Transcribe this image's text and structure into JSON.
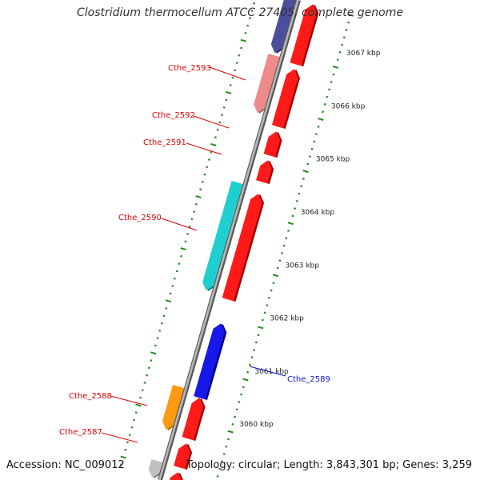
{
  "title": "Clostridium thermocellum ATCC 27405, complete genome",
  "accession": "Accession: NC_009012",
  "topology": "Topology: circular; Length: 3,843,301 bp; Genes: 3,259",
  "colors": {
    "backbone": "#8c8c8c",
    "tick": "#228b22",
    "label_red": "#dd0000",
    "label_blue": "#1010cc",
    "red": "#ff1a1a",
    "red_dark": "#a30000",
    "pink": "#ee8a8a",
    "pink_dark": "#a85a5a",
    "cyan": "#1fcfcf",
    "cyan_dark": "#0d7a7a",
    "blue": "#1818e8",
    "blue_dark": "#000090",
    "orange": "#ff9910",
    "orange_dark": "#b36200",
    "purple": "#4d4d9e",
    "purple_dark": "#2a2a60",
    "gray": "#c0c0c0",
    "gray_dark": "#7a7a7a"
  },
  "scale": {
    "ticks": [
      "3067 kbp",
      "3066 kbp",
      "3065 kbp",
      "3064 kbp",
      "3063 kbp",
      "3062 kbp",
      "3061 kbp",
      "3060 kbp"
    ]
  },
  "genes": [
    {
      "label": "",
      "strand": "+",
      "track": 1,
      "start": 0.0,
      "end": 0.125,
      "color": "red"
    },
    {
      "label": "",
      "strand": "-",
      "track": 2,
      "start": 0.0,
      "end": 0.115,
      "color": "purple"
    },
    {
      "label": "Cthe_2593",
      "strand": "-",
      "track": 2,
      "start": 0.12,
      "end": 0.24,
      "color": "pink"
    },
    {
      "label": "",
      "strand": "+",
      "track": 1,
      "start": 0.135,
      "end": 0.255,
      "color": "red"
    },
    {
      "label": "Cthe_2592",
      "strand": "+",
      "track": 1,
      "start": 0.265,
      "end": 0.315,
      "color": "red"
    },
    {
      "label": "Cthe_2591",
      "strand": "+",
      "track": 1,
      "start": 0.325,
      "end": 0.37,
      "color": "red"
    },
    {
      "label": "Cthe_2590",
      "strand": "-",
      "track": 2,
      "start": 0.385,
      "end": 0.61,
      "color": "cyan"
    },
    {
      "label": "",
      "strand": "+",
      "track": 1,
      "start": 0.395,
      "end": 0.615,
      "color": "red"
    },
    {
      "label": "Cthe_2589",
      "strand": "+",
      "track": 1,
      "start": 0.665,
      "end": 0.82,
      "color": "blue"
    },
    {
      "label": "Cthe_2588",
      "strand": "-",
      "track": 2,
      "start": 0.81,
      "end": 0.9,
      "color": "orange"
    },
    {
      "label": "",
      "strand": "+",
      "track": 1,
      "start": 0.82,
      "end": 0.905,
      "color": "red"
    },
    {
      "label": "Cthe_2587",
      "strand": "+",
      "track": 1,
      "start": 0.915,
      "end": 0.965,
      "color": "red"
    },
    {
      "label": "",
      "strand": "-",
      "track": 2,
      "start": 0.965,
      "end": 1.0,
      "color": "gray"
    },
    {
      "label": "",
      "strand": "+",
      "track": 1,
      "start": 0.975,
      "end": 1.0,
      "color": "red"
    }
  ]
}
